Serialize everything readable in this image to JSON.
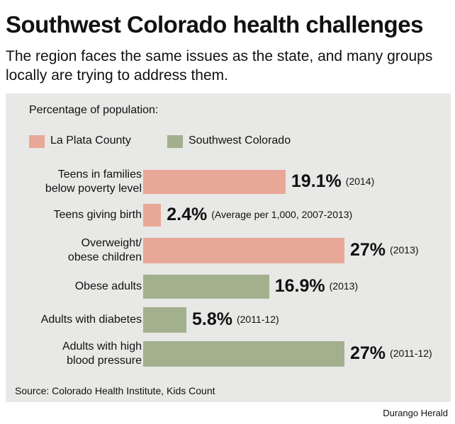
{
  "header": {
    "title": "Southwest Colorado health challenges",
    "subtitle": "The region faces the same issues as the state, and many groups locally are trying to address them."
  },
  "chart_data": {
    "type": "bar",
    "orientation": "horizontal",
    "label": "Percentage of population:",
    "legend": [
      {
        "name": "La Plata County",
        "color": "#e8a897"
      },
      {
        "name": "Southwest Colorado",
        "color": "#a3b08e"
      }
    ],
    "categories": [
      [
        "Teens in families",
        "below poverty level"
      ],
      [
        "Teens giving birth"
      ],
      [
        "Overweight/",
        "obese children"
      ],
      [
        "Obese adults"
      ],
      [
        "Adults with diabetes"
      ],
      [
        "Adults with high",
        "blood pressure"
      ]
    ],
    "values": [
      19.1,
      2.4,
      27,
      16.9,
      5.8,
      27
    ],
    "value_labels": [
      "19.1%",
      "2.4%",
      "27%",
      "16.9%",
      "5.8%",
      "27%"
    ],
    "notes": [
      "(2014)",
      "(Average per 1,000, 2007-2013)",
      "(2013)",
      "(2013)",
      "(2011-12)",
      "(2011-12)"
    ],
    "series_index": [
      0,
      0,
      0,
      1,
      1,
      1
    ],
    "source": "Source: Colorado Health Institute, Kids Count"
  },
  "credit": "Durango Herald"
}
